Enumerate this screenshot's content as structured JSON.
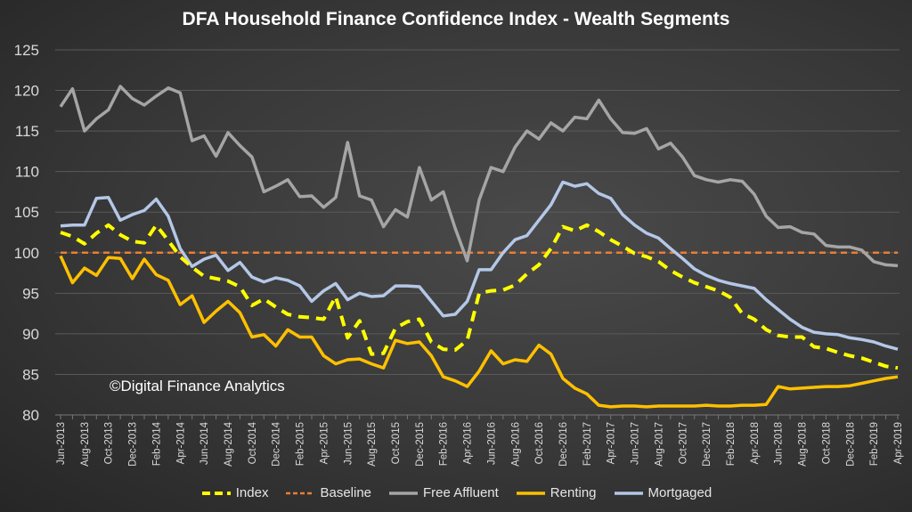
{
  "chart_data": {
    "type": "line",
    "title": "DFA Household Finance Confidence Index - Wealth Segments",
    "annotation": "©Digital Finance Analytics",
    "xlabel": "",
    "ylabel": "",
    "ylim": [
      80,
      125
    ],
    "yticks": [
      80,
      85,
      90,
      95,
      100,
      105,
      110,
      115,
      120,
      125
    ],
    "grid": true,
    "legend_position": "bottom",
    "x": [
      "Jun-2013",
      "Jul-2013",
      "Aug-2013",
      "Sep-2013",
      "Oct-2013",
      "Nov-2013",
      "Dec-2013",
      "Jan-2014",
      "Feb-2014",
      "Mar-2014",
      "Apr-2014",
      "May-2014",
      "Jun-2014",
      "Jul-2014",
      "Aug-2014",
      "Sep-2014",
      "Oct-2014",
      "Nov-2014",
      "Dec-2014",
      "Jan-2015",
      "Feb-2015",
      "Mar-2015",
      "Apr-2015",
      "May-2015",
      "Jun-2015",
      "Jul-2015",
      "Aug-2015",
      "Sep-2015",
      "Oct-2015",
      "Nov-2015",
      "Dec-2015",
      "Jan-2016",
      "Feb-2016",
      "Mar-2016",
      "Apr-2016",
      "May-2016",
      "Jun-2016",
      "Jul-2016",
      "Aug-2016",
      "Sep-2016",
      "Oct-2016",
      "Nov-2016",
      "Dec-2016",
      "Jan-2017",
      "Feb-2017",
      "Mar-2017",
      "Apr-2017",
      "May-2017",
      "Jun-2017",
      "Jul-2017",
      "Aug-2017",
      "Sep-2017",
      "Oct-2017",
      "Nov-2017",
      "Dec-2017",
      "Jan-2018",
      "Feb-2018",
      "Mar-2018",
      "Apr-2018",
      "May-2018",
      "Jun-2018",
      "Jul-2018",
      "Aug-2018",
      "Sep-2018",
      "Oct-2018",
      "Nov-2018",
      "Dec-2018",
      "Jan-2019",
      "Feb-2019",
      "Mar-2019",
      "Apr-2019"
    ],
    "tick_every": 2,
    "series": [
      {
        "name": "Index",
        "color": "#ffff00",
        "dash": "12,8",
        "width": 4,
        "values": [
          102.5,
          102,
          101.1,
          102.4,
          103.4,
          102.2,
          101.4,
          101.2,
          103.4,
          101.5,
          99.5,
          98.2,
          97.1,
          96.8,
          96.5,
          95.8,
          93.5,
          94.3,
          93.3,
          92.4,
          92.1,
          92,
          91.8,
          94.6,
          89.5,
          91.6,
          87.5,
          87.6,
          90.7,
          91.5,
          91.8,
          89,
          88.1,
          88,
          89.2,
          95,
          95.3,
          95.4,
          96,
          97.4,
          98.5,
          100.5,
          103.2,
          102.7,
          103.4,
          102.6,
          101.6,
          100.8,
          99.9,
          99.5,
          98.9,
          97.8,
          97,
          96.3,
          95.8,
          95.3,
          94.5,
          92.5,
          91.8,
          90.5,
          89.8,
          89.6,
          89.6,
          88.4,
          88.2,
          87.7,
          87.3,
          87,
          86.5,
          86,
          85.8
        ]
      },
      {
        "name": "Baseline",
        "color": "#ed7d31",
        "dash": "7,5",
        "width": 2.5,
        "values": [
          100,
          100,
          100,
          100,
          100,
          100,
          100,
          100,
          100,
          100,
          100,
          100,
          100,
          100,
          100,
          100,
          100,
          100,
          100,
          100,
          100,
          100,
          100,
          100,
          100,
          100,
          100,
          100,
          100,
          100,
          100,
          100,
          100,
          100,
          100,
          100,
          100,
          100,
          100,
          100,
          100,
          100,
          100,
          100,
          100,
          100,
          100,
          100,
          100,
          100,
          100,
          100,
          100,
          100,
          100,
          100,
          100,
          100,
          100,
          100,
          100,
          100,
          100,
          100,
          100,
          100,
          100,
          100,
          100,
          100,
          100
        ]
      },
      {
        "name": "Free Affluent",
        "color": "#a5a5a5",
        "dash": "",
        "width": 3.5,
        "values": [
          118,
          120.2,
          115,
          116.5,
          117.6,
          120.5,
          119,
          118.2,
          119.3,
          120.3,
          119.7,
          113.8,
          114.4,
          111.9,
          114.8,
          113.2,
          111.8,
          107.5,
          108.2,
          109,
          106.9,
          107,
          105.6,
          106.8,
          113.6,
          107,
          106.5,
          103.2,
          105.3,
          104.4,
          110.5,
          106.5,
          107.5,
          103,
          99,
          106.5,
          110.5,
          110,
          113,
          115,
          114,
          116,
          115,
          116.7,
          116.5,
          118.8,
          116.5,
          114.8,
          114.7,
          115.3,
          112.8,
          113.5,
          111.8,
          109.5,
          109,
          108.7,
          109,
          108.8,
          107.2,
          104.5,
          103.1,
          103.2,
          102.5,
          102.3,
          100.9,
          100.7,
          100.7,
          100.3,
          98.9,
          98.5,
          98.4
        ]
      },
      {
        "name": "Renting",
        "color": "#ffc000",
        "dash": "",
        "width": 3.5,
        "values": [
          99.6,
          96.3,
          98.1,
          97.2,
          99.4,
          99.3,
          96.8,
          99.2,
          97.3,
          96.6,
          93.6,
          94.7,
          91.4,
          92.8,
          94,
          92.6,
          89.6,
          89.9,
          88.5,
          90.5,
          89.6,
          89.6,
          87.3,
          86.3,
          86.8,
          86.9,
          86.3,
          85.8,
          89.2,
          88.8,
          89,
          87.3,
          84.7,
          84.2,
          83.5,
          85.4,
          87.9,
          86.3,
          86.8,
          86.6,
          88.6,
          87.5,
          84.5,
          83.3,
          82.6,
          81.2,
          81,
          81.1,
          81.1,
          81,
          81.1,
          81.1,
          81.1,
          81.1,
          81.2,
          81.1,
          81.1,
          81.2,
          81.2,
          81.3,
          83.5,
          83.2,
          83.3,
          83.4,
          83.5,
          83.5,
          83.6,
          83.9,
          84.2,
          84.5,
          84.7
        ]
      },
      {
        "name": "Mortgaged",
        "color": "#b4c7e7",
        "dash": "",
        "width": 3.5,
        "values": [
          103.3,
          103.4,
          103.4,
          106.7,
          106.8,
          104,
          104.7,
          105.2,
          106.6,
          104.5,
          100.5,
          98.3,
          99.2,
          99.7,
          97.8,
          98.8,
          97,
          96.4,
          96.9,
          96.6,
          95.9,
          94,
          95.3,
          96.2,
          94.2,
          95,
          94.6,
          94.7,
          95.9,
          95.9,
          95.8,
          94,
          92.2,
          92.4,
          94,
          97.9,
          97.9,
          100,
          101.6,
          102.1,
          104,
          105.9,
          108.7,
          108.2,
          108.5,
          107.3,
          106.7,
          104.7,
          103.4,
          102.4,
          101.8,
          100.5,
          99.3,
          98,
          97.2,
          96.6,
          96.2,
          95.9,
          95.6,
          94.2,
          93,
          91.8,
          90.8,
          90.2,
          90,
          89.9,
          89.5,
          89.3,
          89,
          88.5,
          88.1
        ]
      }
    ]
  }
}
